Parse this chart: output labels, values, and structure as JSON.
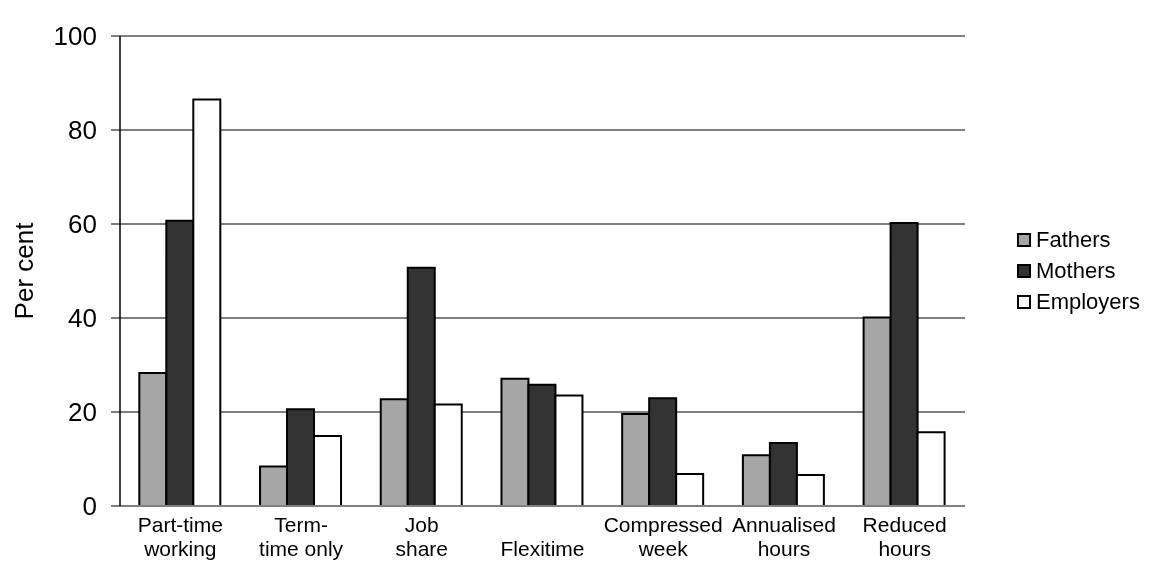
{
  "chart_data": {
    "type": "bar",
    "ylabel": "Per cent",
    "categories": [
      "Part-time working",
      "Term-time only",
      "Job share",
      "Flexitime",
      "Compressed week",
      "Annualised hours",
      "Reduced hours"
    ],
    "series": [
      {
        "name": "Fathers",
        "color": "#a6a6a6",
        "values": [
          28.3,
          8.4,
          22.7,
          27.1,
          19.6,
          10.8,
          40.1
        ]
      },
      {
        "name": "Mothers",
        "color": "#333333",
        "values": [
          60.7,
          20.6,
          50.7,
          25.8,
          22.9,
          13.4,
          60.2
        ]
      },
      {
        "name": "Employers",
        "color": "#ffffff",
        "values": [
          86.5,
          14.9,
          21.6,
          23.5,
          6.8,
          6.6,
          15.7
        ]
      }
    ],
    "ylim": [
      0,
      100
    ],
    "yticks": [
      0,
      20,
      40,
      60,
      80,
      100
    ],
    "grid": "y",
    "legend": "right"
  }
}
